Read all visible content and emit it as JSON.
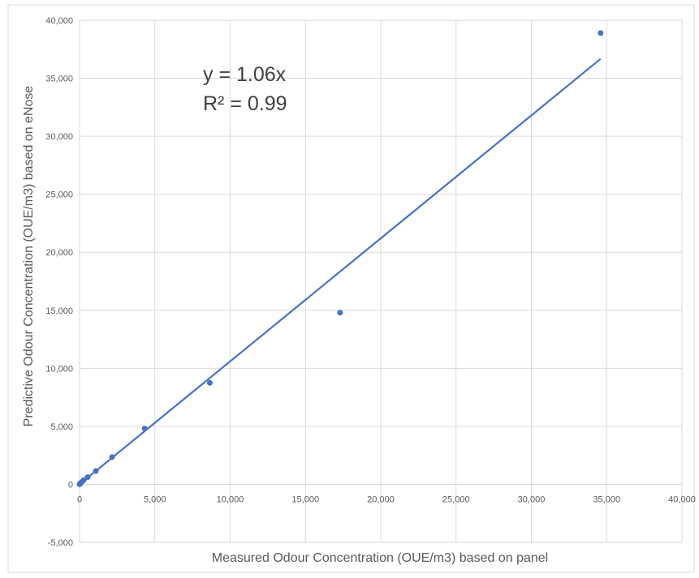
{
  "chart_data": {
    "type": "scatter",
    "title": "",
    "xlabel": "Measured  Odour Concentration (OUE/m3)  based on panel",
    "ylabel": "Predictive Odour Concentration (OUE/m3) based on eNose",
    "xlim": [
      0,
      40000
    ],
    "ylim": [
      -5000,
      40000
    ],
    "x_ticks": [
      0,
      5000,
      10000,
      15000,
      20000,
      25000,
      30000,
      35000,
      40000
    ],
    "x_tick_labels": [
      "0",
      "5,000",
      "10,000",
      "15,000",
      "20,000",
      "25,000",
      "30,000",
      "35,000",
      "40,000"
    ],
    "y_ticks": [
      -5000,
      0,
      5000,
      10000,
      15000,
      20000,
      25000,
      30000,
      35000,
      40000
    ],
    "y_tick_labels": [
      "-5,000",
      "0",
      "5,000",
      "10,000",
      "15,000",
      "20,000",
      "25,000",
      "30,000",
      "35,000",
      "40,000"
    ],
    "grid": true,
    "series": [
      {
        "color": "#4472c4",
        "points": [
          {
            "x": 0,
            "y": 0
          },
          {
            "x": 35,
            "y": 60
          },
          {
            "x": 70,
            "y": 100
          },
          {
            "x": 135,
            "y": 190
          },
          {
            "x": 270,
            "y": 360
          },
          {
            "x": 540,
            "y": 620
          },
          {
            "x": 1080,
            "y": 1150
          },
          {
            "x": 2160,
            "y": 2350
          },
          {
            "x": 4320,
            "y": 4800
          },
          {
            "x": 8650,
            "y": 8750
          },
          {
            "x": 17300,
            "y": 14800
          },
          {
            "x": 34600,
            "y": 38900
          }
        ]
      }
    ],
    "trendline": {
      "type": "linear",
      "slope": 1.06,
      "intercept": 0,
      "x_range": [
        0,
        34600
      ],
      "color": "#4472c4"
    },
    "annotations": {
      "equation": "y = 1.06x",
      "r_squared": "R² = 0.99"
    }
  }
}
